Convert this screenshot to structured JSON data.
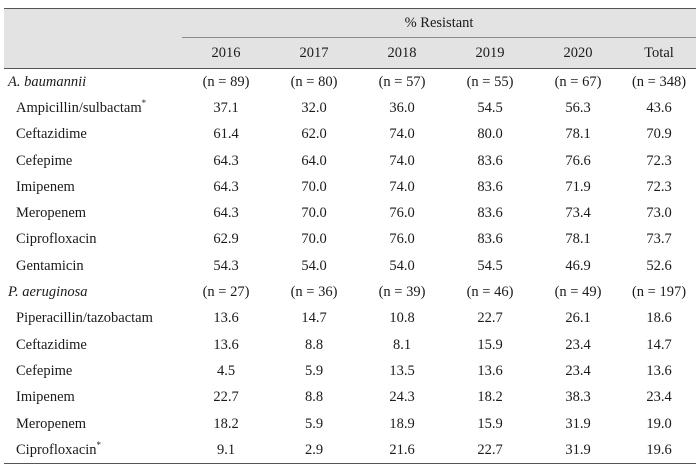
{
  "table": {
    "group_header": "% Resistant",
    "columns": [
      "",
      "2016",
      "2017",
      "2018",
      "2019",
      "2020",
      "Total"
    ],
    "rows": [
      {
        "kind": "species",
        "label": "A. baumannii",
        "mark": "",
        "cells": [
          "(n = 89)",
          "(n = 80)",
          "(n = 57)",
          "(n = 55)",
          "(n = 67)",
          "(n = 348)"
        ]
      },
      {
        "kind": "drug",
        "label": "Ampicillin/sulbactam",
        "mark": "*",
        "cells": [
          "37.1",
          "32.0",
          "36.0",
          "54.5",
          "56.3",
          "43.6"
        ]
      },
      {
        "kind": "drug",
        "label": "Ceftazidime",
        "mark": "",
        "cells": [
          "61.4",
          "62.0",
          "74.0",
          "80.0",
          "78.1",
          "70.9"
        ]
      },
      {
        "kind": "drug",
        "label": "Cefepime",
        "mark": "",
        "cells": [
          "64.3",
          "64.0",
          "74.0",
          "83.6",
          "76.6",
          "72.3"
        ]
      },
      {
        "kind": "drug",
        "label": "Imipenem",
        "mark": "",
        "cells": [
          "64.3",
          "70.0",
          "74.0",
          "83.6",
          "71.9",
          "72.3"
        ]
      },
      {
        "kind": "drug",
        "label": "Meropenem",
        "mark": "",
        "cells": [
          "64.3",
          "70.0",
          "76.0",
          "83.6",
          "73.4",
          "73.0"
        ]
      },
      {
        "kind": "drug",
        "label": "Ciprofloxacin",
        "mark": "",
        "cells": [
          "62.9",
          "70.0",
          "76.0",
          "83.6",
          "78.1",
          "73.7"
        ]
      },
      {
        "kind": "drug",
        "label": "Gentamicin",
        "mark": "",
        "cells": [
          "54.3",
          "54.0",
          "54.0",
          "54.5",
          "46.9",
          "52.6"
        ]
      },
      {
        "kind": "species",
        "label": "P. aeruginosa",
        "mark": "",
        "cells": [
          "(n = 27)",
          "(n = 36)",
          "(n = 39)",
          "(n = 46)",
          "(n = 49)",
          "(n = 197)"
        ]
      },
      {
        "kind": "drug",
        "label": "Piperacillin/tazobactam",
        "mark": "",
        "cells": [
          "13.6",
          "14.7",
          "10.8",
          "22.7",
          "26.1",
          "18.6"
        ]
      },
      {
        "kind": "drug",
        "label": "Ceftazidime",
        "mark": "",
        "cells": [
          "13.6",
          "8.8",
          "8.1",
          "15.9",
          "23.4",
          "14.7"
        ]
      },
      {
        "kind": "drug",
        "label": "Cefepime",
        "mark": "",
        "cells": [
          "4.5",
          "5.9",
          "13.5",
          "13.6",
          "23.4",
          "13.6"
        ]
      },
      {
        "kind": "drug",
        "label": "Imipenem",
        "mark": "",
        "cells": [
          "22.7",
          "8.8",
          "24.3",
          "18.2",
          "38.3",
          "23.4"
        ]
      },
      {
        "kind": "drug",
        "label": "Meropenem",
        "mark": "",
        "cells": [
          "18.2",
          "5.9",
          "18.9",
          "15.9",
          "31.9",
          "19.0"
        ]
      },
      {
        "kind": "drug",
        "label": "Ciprofloxacin",
        "mark": "*",
        "cells": [
          "9.1",
          "2.9",
          "21.6",
          "22.7",
          "31.9",
          "19.6"
        ]
      }
    ]
  },
  "colors": {
    "header_bg": "#e3e3e3",
    "rule": "#555555",
    "text": "#1a1a1a"
  }
}
